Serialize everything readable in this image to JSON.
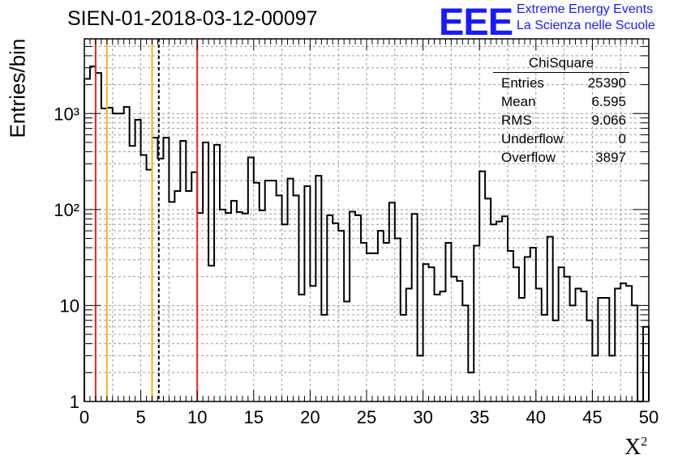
{
  "title": "SIEN-01-2018-03-12-00097",
  "logo": {
    "mark": "EEE",
    "line1": "Extreme Energy Events",
    "line2": "La Scienza nelle Scuole"
  },
  "stats": {
    "title": "ChiSquare",
    "rows": [
      {
        "label": "Entries",
        "value": "25390"
      },
      {
        "label": "Mean",
        "value": "6.595"
      },
      {
        "label": "RMS",
        "value": "9.066"
      },
      {
        "label": "Underflow",
        "value": "0"
      },
      {
        "label": "Overflow",
        "value": "3897"
      }
    ]
  },
  "chart_data": {
    "type": "histogram",
    "title": "SIEN-01-2018-03-12-00097",
    "xlabel": "χ²",
    "ylabel": "Entries/bin",
    "xlim": [
      0,
      50
    ],
    "ylim": [
      1,
      6000
    ],
    "log_y": true,
    "grid": true,
    "x_ticks": [
      "0",
      "5",
      "10",
      "15",
      "20",
      "25",
      "30",
      "35",
      "40",
      "45",
      "50"
    ],
    "y_ticks": [
      {
        "value": 1,
        "label": "1"
      },
      {
        "value": 10,
        "label": "10"
      },
      {
        "value": 100,
        "label": "10²"
      },
      {
        "value": 1000,
        "label": "10³"
      }
    ],
    "bin_edges": [
      0,
      0.5,
      1,
      1.5,
      2,
      2.5,
      3,
      3.5,
      4,
      4.5,
      5,
      5.5,
      6,
      6.5,
      7,
      7.5,
      8,
      8.5,
      9,
      9.5,
      10,
      10.5,
      11,
      11.5,
      12,
      12.5,
      13,
      13.5,
      14,
      14.5,
      15,
      15.5,
      16,
      16.5,
      17,
      17.5,
      18,
      18.5,
      19,
      19.5,
      20,
      20.5,
      21,
      21.5,
      22,
      22.5,
      23,
      23.5,
      24,
      24.5,
      25,
      25.5,
      26,
      26.5,
      27,
      27.5,
      28,
      28.5,
      29,
      29.5,
      30,
      30.5,
      31,
      31.5,
      32,
      32.5,
      33,
      33.5,
      34,
      34.5,
      35,
      35.5,
      36,
      36.5,
      37,
      37.5,
      38,
      38.5,
      39,
      39.5,
      40,
      40.5,
      41,
      41.5,
      42,
      42.5,
      43,
      43.5,
      44,
      44.5,
      45,
      45.5,
      46,
      46.5,
      47,
      47.5,
      48,
      48.5,
      49,
      49.5,
      50
    ],
    "values": [
      2300,
      3100,
      2650,
      1130,
      1150,
      1000,
      1000,
      1170,
      460,
      860,
      370,
      260,
      560,
      340,
      560,
      120,
      156,
      520,
      156,
      245,
      92,
      500,
      26,
      473,
      100,
      92,
      123,
      94,
      91,
      349,
      190,
      98,
      200,
      200,
      140,
      70,
      210,
      140,
      13,
      175,
      16,
      225,
      8,
      87,
      72,
      60,
      11,
      95,
      87,
      45,
      35,
      35,
      60,
      45,
      118,
      50,
      8,
      15,
      90,
      3,
      27,
      25,
      13,
      14,
      45,
      20,
      18,
      10,
      2,
      42,
      250,
      130,
      70,
      75,
      85,
      37,
      25,
      12,
      32,
      40,
      15,
      8,
      52,
      7,
      25,
      20,
      10,
      15,
      14,
      7,
      3,
      12,
      12,
      3,
      15,
      17,
      16,
      10,
      1,
      6
    ],
    "vertical_lines": [
      {
        "x": 1.0,
        "color": "#e8251f",
        "style": "solid"
      },
      {
        "x": 2.0,
        "color": "#f0b324",
        "style": "solid"
      },
      {
        "x": 6.0,
        "color": "#f0b324",
        "style": "solid"
      },
      {
        "x": 6.595,
        "color": "#000000",
        "style": "dashed"
      },
      {
        "x": 10.0,
        "color": "#e8251f",
        "style": "solid"
      }
    ]
  }
}
